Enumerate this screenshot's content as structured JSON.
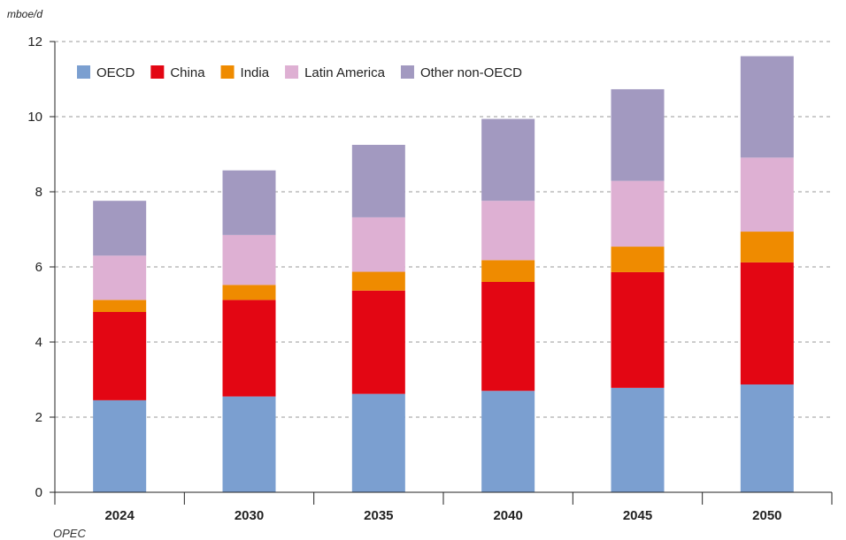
{
  "source_label": "OPEC",
  "chart_data": {
    "type": "bar",
    "stacked": true,
    "ylabel": "mboe/d",
    "ylim": [
      0,
      12
    ],
    "yticks": [
      0,
      2,
      4,
      6,
      8,
      10,
      12
    ],
    "grid": "horizontal-dashed",
    "legend_position": "top-left",
    "categories": [
      "2024",
      "2030",
      "2035",
      "2040",
      "2045",
      "2050"
    ],
    "series": [
      {
        "name": "OECD",
        "color": "#7b9fd0",
        "values": [
          2.45,
          2.55,
          2.62,
          2.7,
          2.78,
          2.87
        ]
      },
      {
        "name": "China",
        "color": "#e30613",
        "values": [
          2.35,
          2.57,
          2.75,
          2.9,
          3.08,
          3.25
        ]
      },
      {
        "name": "India",
        "color": "#ef8b00",
        "values": [
          0.32,
          0.4,
          0.5,
          0.58,
          0.68,
          0.82
        ]
      },
      {
        "name": "Latin America",
        "color": "#deb0d3",
        "values": [
          1.18,
          1.33,
          1.45,
          1.58,
          1.75,
          1.97
        ]
      },
      {
        "name": "Other non-OECD",
        "color": "#a299c0",
        "values": [
          1.46,
          1.72,
          1.93,
          2.18,
          2.44,
          2.7
        ]
      }
    ]
  }
}
